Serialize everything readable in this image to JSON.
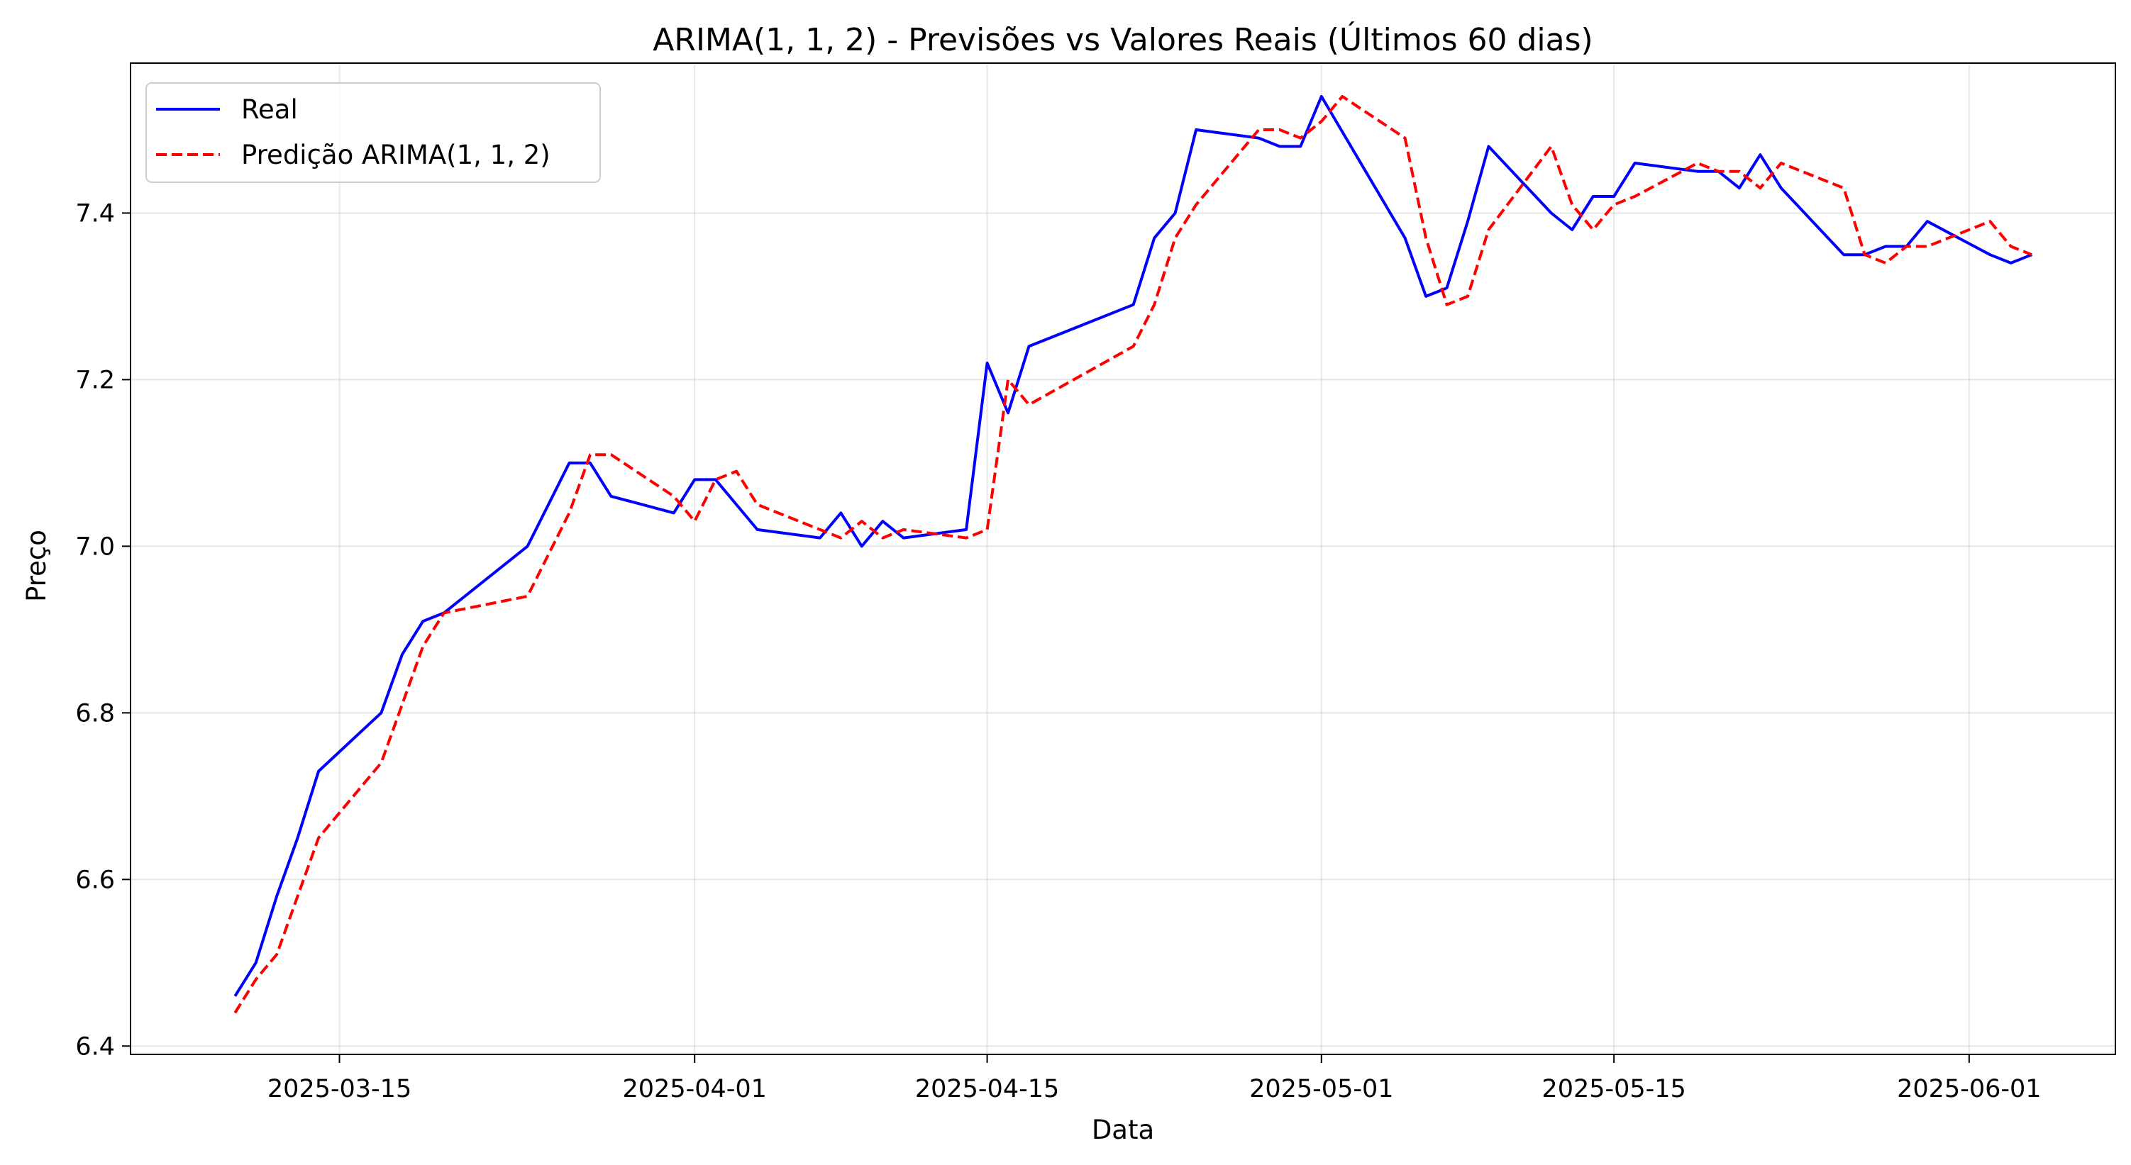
{
  "chart_data": {
    "type": "line",
    "title": "ARIMA(1, 1, 2) - Previsões vs Valores Reais (Últimos 60 dias)",
    "xlabel": "Data",
    "ylabel": "Preço",
    "xlim": [
      "2025-03-05",
      "2025-06-08"
    ],
    "ylim": [
      6.39,
      7.58
    ],
    "xticks": [
      "2025-03-15",
      "2025-04-01",
      "2025-04-15",
      "2025-05-01",
      "2025-05-15",
      "2025-06-01"
    ],
    "yticks": [
      6.4,
      6.6,
      6.8,
      7.0,
      7.2,
      7.4
    ],
    "ytick_labels": [
      "6.4",
      "6.6",
      "6.8",
      "7.0",
      "7.2",
      "7.4"
    ],
    "grid": true,
    "legend_position": "top-left",
    "series": [
      {
        "name": "Real",
        "color": "#0000ff",
        "style": "solid",
        "points": [
          [
            "2025-03-10",
            6.46
          ],
          [
            "2025-03-11",
            6.5
          ],
          [
            "2025-03-12",
            6.58
          ],
          [
            "2025-03-13",
            6.65
          ],
          [
            "2025-03-14",
            6.73
          ],
          [
            "2025-03-17",
            6.8
          ],
          [
            "2025-03-18",
            6.87
          ],
          [
            "2025-03-19",
            6.91
          ],
          [
            "2025-03-20",
            6.92
          ],
          [
            "2025-03-24",
            7.0
          ],
          [
            "2025-03-25",
            7.05
          ],
          [
            "2025-03-26",
            7.1
          ],
          [
            "2025-03-27",
            7.1
          ],
          [
            "2025-03-28",
            7.06
          ],
          [
            "2025-03-31",
            7.04
          ],
          [
            "2025-04-01",
            7.08
          ],
          [
            "2025-04-02",
            7.08
          ],
          [
            "2025-04-03",
            7.05
          ],
          [
            "2025-04-04",
            7.02
          ],
          [
            "2025-04-07",
            7.01
          ],
          [
            "2025-04-08",
            7.04
          ],
          [
            "2025-04-09",
            7.0
          ],
          [
            "2025-04-10",
            7.03
          ],
          [
            "2025-04-11",
            7.01
          ],
          [
            "2025-04-14",
            7.02
          ],
          [
            "2025-04-15",
            7.22
          ],
          [
            "2025-04-16",
            7.16
          ],
          [
            "2025-04-17",
            7.24
          ],
          [
            "2025-04-22",
            7.29
          ],
          [
            "2025-04-23",
            7.37
          ],
          [
            "2025-04-24",
            7.4
          ],
          [
            "2025-04-25",
            7.5
          ],
          [
            "2025-04-28",
            7.49
          ],
          [
            "2025-04-29",
            7.48
          ],
          [
            "2025-04-30",
            7.48
          ],
          [
            "2025-05-01",
            7.54
          ],
          [
            "2025-05-05",
            7.37
          ],
          [
            "2025-05-06",
            7.3
          ],
          [
            "2025-05-07",
            7.31
          ],
          [
            "2025-05-08",
            7.39
          ],
          [
            "2025-05-09",
            7.48
          ],
          [
            "2025-05-12",
            7.4
          ],
          [
            "2025-05-13",
            7.38
          ],
          [
            "2025-05-14",
            7.42
          ],
          [
            "2025-05-15",
            7.42
          ],
          [
            "2025-05-16",
            7.46
          ],
          [
            "2025-05-19",
            7.45
          ],
          [
            "2025-05-20",
            7.45
          ],
          [
            "2025-05-21",
            7.43
          ],
          [
            "2025-05-22",
            7.47
          ],
          [
            "2025-05-23",
            7.43
          ],
          [
            "2025-05-26",
            7.35
          ],
          [
            "2025-05-27",
            7.35
          ],
          [
            "2025-05-28",
            7.36
          ],
          [
            "2025-05-29",
            7.36
          ],
          [
            "2025-05-30",
            7.39
          ],
          [
            "2025-06-02",
            7.35
          ],
          [
            "2025-06-03",
            7.34
          ],
          [
            "2025-06-04",
            7.35
          ]
        ]
      },
      {
        "name": "Predição ARIMA(1, 1, 2)",
        "color": "#ff0000",
        "style": "dashed",
        "points": [
          [
            "2025-03-10",
            6.44
          ],
          [
            "2025-03-11",
            6.48
          ],
          [
            "2025-03-12",
            6.51
          ],
          [
            "2025-03-13",
            6.58
          ],
          [
            "2025-03-14",
            6.65
          ],
          [
            "2025-03-17",
            6.74
          ],
          [
            "2025-03-18",
            6.81
          ],
          [
            "2025-03-19",
            6.88
          ],
          [
            "2025-03-20",
            6.92
          ],
          [
            "2025-03-24",
            6.94
          ],
          [
            "2025-03-25",
            6.99
          ],
          [
            "2025-03-26",
            7.04
          ],
          [
            "2025-03-27",
            7.11
          ],
          [
            "2025-03-28",
            7.11
          ],
          [
            "2025-03-31",
            7.06
          ],
          [
            "2025-04-01",
            7.03
          ],
          [
            "2025-04-02",
            7.08
          ],
          [
            "2025-04-03",
            7.09
          ],
          [
            "2025-04-04",
            7.05
          ],
          [
            "2025-04-07",
            7.02
          ],
          [
            "2025-04-08",
            7.01
          ],
          [
            "2025-04-09",
            7.03
          ],
          [
            "2025-04-10",
            7.01
          ],
          [
            "2025-04-11",
            7.02
          ],
          [
            "2025-04-14",
            7.01
          ],
          [
            "2025-04-15",
            7.02
          ],
          [
            "2025-04-16",
            7.2
          ],
          [
            "2025-04-17",
            7.17
          ],
          [
            "2025-04-22",
            7.24
          ],
          [
            "2025-04-23",
            7.29
          ],
          [
            "2025-04-24",
            7.37
          ],
          [
            "2025-04-25",
            7.41
          ],
          [
            "2025-04-28",
            7.5
          ],
          [
            "2025-04-29",
            7.5
          ],
          [
            "2025-04-30",
            7.49
          ],
          [
            "2025-05-01",
            7.51
          ],
          [
            "2025-05-02",
            7.54
          ],
          [
            "2025-05-05",
            7.49
          ],
          [
            "2025-05-06",
            7.37
          ],
          [
            "2025-05-07",
            7.29
          ],
          [
            "2025-05-08",
            7.3
          ],
          [
            "2025-05-09",
            7.38
          ],
          [
            "2025-05-12",
            7.48
          ],
          [
            "2025-05-13",
            7.41
          ],
          [
            "2025-05-14",
            7.38
          ],
          [
            "2025-05-15",
            7.41
          ],
          [
            "2025-05-16",
            7.42
          ],
          [
            "2025-05-19",
            7.46
          ],
          [
            "2025-05-20",
            7.45
          ],
          [
            "2025-05-21",
            7.45
          ],
          [
            "2025-05-22",
            7.43
          ],
          [
            "2025-05-23",
            7.46
          ],
          [
            "2025-05-26",
            7.43
          ],
          [
            "2025-05-27",
            7.35
          ],
          [
            "2025-05-28",
            7.34
          ],
          [
            "2025-05-29",
            7.36
          ],
          [
            "2025-05-30",
            7.36
          ],
          [
            "2025-06-02",
            7.39
          ],
          [
            "2025-06-03",
            7.36
          ],
          [
            "2025-06-04",
            7.35
          ]
        ]
      }
    ]
  }
}
